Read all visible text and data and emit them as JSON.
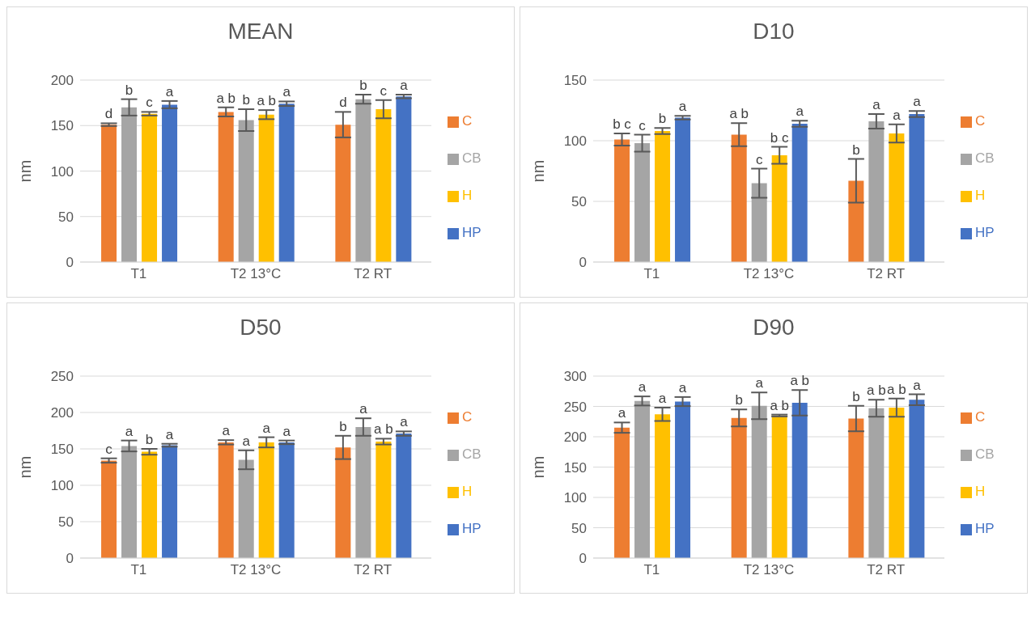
{
  "chart_data": [
    {
      "type": "bar",
      "title": "MEAN",
      "ylabel": "nm",
      "categories": [
        "T1",
        "T2 13°C",
        "T2 RT"
      ],
      "ylim": [
        0,
        200
      ],
      "yticks": [
        0,
        50,
        100,
        150,
        200
      ],
      "grid": "y",
      "legend": "right",
      "series": [
        {
          "name": "C",
          "color": "#ed7d31",
          "values": [
            151,
            165,
            151
          ],
          "errors": [
            1.5,
            5,
            14
          ],
          "value_labels": [
            "d",
            "a b",
            "d"
          ]
        },
        {
          "name": "CB",
          "color": "#a5a5a5",
          "values": [
            170,
            156,
            179
          ],
          "errors": [
            9,
            12,
            5
          ],
          "value_labels": [
            "b",
            "b",
            "b"
          ]
        },
        {
          "name": "H",
          "color": "#ffc000",
          "values": [
            163,
            162,
            168
          ],
          "errors": [
            2,
            5,
            10
          ],
          "value_labels": [
            "c",
            "a b",
            "c"
          ]
        },
        {
          "name": "HP",
          "color": "#4472c4",
          "values": [
            173,
            174,
            182
          ],
          "errors": [
            4,
            2.5,
            2
          ],
          "value_labels": [
            "a",
            "a",
            "a"
          ]
        }
      ]
    },
    {
      "type": "bar",
      "title": "D10",
      "ylabel": "nm",
      "categories": [
        "T1",
        "T2 13°C",
        "T2 RT"
      ],
      "ylim": [
        0,
        150
      ],
      "yticks": [
        0,
        50,
        100,
        150
      ],
      "grid": "y",
      "legend": "right",
      "series": [
        {
          "name": "C",
          "color": "#ed7d31",
          "values": [
            101,
            105,
            67
          ],
          "errors": [
            5,
            9.5,
            18
          ],
          "value_labels": [
            "b c",
            "a b",
            "b"
          ]
        },
        {
          "name": "CB",
          "color": "#a5a5a5",
          "values": [
            98,
            65,
            116
          ],
          "errors": [
            7,
            12,
            6
          ],
          "value_labels": [
            "c",
            "c",
            "a"
          ]
        },
        {
          "name": "H",
          "color": "#ffc000",
          "values": [
            108,
            88,
            106
          ],
          "errors": [
            2.5,
            7,
            7.5
          ],
          "value_labels": [
            "b",
            "b c",
            "a"
          ]
        },
        {
          "name": "HP",
          "color": "#4472c4",
          "values": [
            119,
            114,
            122
          ],
          "errors": [
            1.5,
            2.5,
            2.5
          ],
          "value_labels": [
            "a",
            "a",
            "a"
          ]
        }
      ]
    },
    {
      "type": "bar",
      "title": "D50",
      "ylabel": "nm",
      "categories": [
        "T1",
        "T2 13°C",
        "T2 RT"
      ],
      "ylim": [
        0,
        250
      ],
      "yticks": [
        0,
        50,
        100,
        150,
        200,
        250
      ],
      "grid": "y",
      "legend": "right",
      "series": [
        {
          "name": "C",
          "color": "#ed7d31",
          "values": [
            134,
            159,
            152
          ],
          "errors": [
            3,
            3,
            16
          ],
          "value_labels": [
            "c",
            "a",
            "b"
          ]
        },
        {
          "name": "CB",
          "color": "#a5a5a5",
          "values": [
            154,
            135,
            180
          ],
          "errors": [
            7.5,
            13,
            12
          ],
          "value_labels": [
            "a",
            "a",
            "a"
          ]
        },
        {
          "name": "H",
          "color": "#ffc000",
          "values": [
            146,
            159,
            160
          ],
          "errors": [
            4,
            7,
            4
          ],
          "value_labels": [
            "b",
            "a",
            "a b"
          ]
        },
        {
          "name": "HP",
          "color": "#4472c4",
          "values": [
            155,
            159,
            171
          ],
          "errors": [
            2,
            2.5,
            3
          ],
          "value_labels": [
            "a",
            "a",
            "a"
          ]
        }
      ]
    },
    {
      "type": "bar",
      "title": "D90",
      "ylabel": "nm",
      "categories": [
        "T1",
        "T2 13°C",
        "T2 RT"
      ],
      "ylim": [
        0,
        300
      ],
      "yticks": [
        0,
        50,
        100,
        150,
        200,
        250,
        300
      ],
      "grid": "y",
      "legend": "right",
      "series": [
        {
          "name": "C",
          "color": "#ed7d31",
          "values": [
            215,
            231,
            230
          ],
          "errors": [
            8.5,
            14,
            21
          ],
          "value_labels": [
            "a",
            "b",
            "b"
          ]
        },
        {
          "name": "CB",
          "color": "#a5a5a5",
          "values": [
            259,
            251,
            247
          ],
          "errors": [
            7.5,
            22,
            14
          ],
          "value_labels": [
            "a",
            "a",
            "a b"
          ]
        },
        {
          "name": "H",
          "color": "#ffc000",
          "values": [
            237,
            235,
            248
          ],
          "errors": [
            11,
            1.5,
            15
          ],
          "value_labels": [
            "a",
            "a b",
            "a b"
          ]
        },
        {
          "name": "HP",
          "color": "#4472c4",
          "values": [
            258,
            256,
            261
          ],
          "errors": [
            7.5,
            21,
            9
          ],
          "value_labels": [
            "a",
            "a b",
            "a"
          ]
        }
      ]
    }
  ]
}
